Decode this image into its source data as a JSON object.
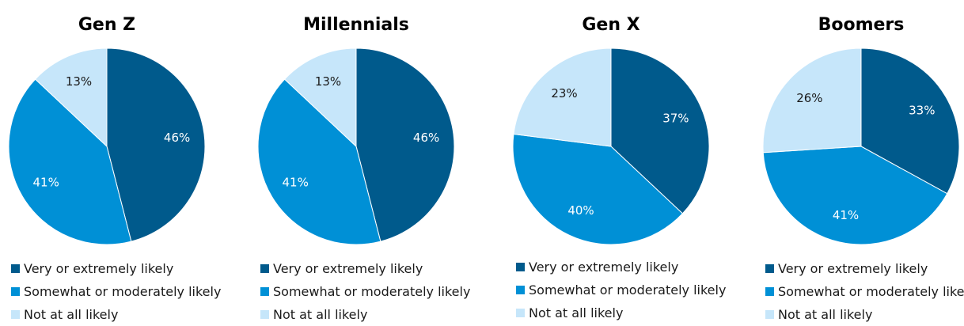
{
  "chart_data": [
    {
      "type": "pie",
      "title": "Gen Z",
      "categories": [
        "Very or extremely likely",
        "Somewhat or moderately likely",
        "Not at all likely"
      ],
      "values": [
        46,
        41,
        13
      ],
      "labels": [
        "46%",
        "41%",
        "13%"
      ],
      "legend_position": "bottom"
    },
    {
      "type": "pie",
      "title": "Millennials",
      "categories": [
        "Very or extremely likely",
        "Somewhat or moderately likely",
        "Not at all likely"
      ],
      "values": [
        46,
        41,
        13
      ],
      "labels": [
        "46%",
        "41%",
        "13%"
      ],
      "legend_position": "bottom"
    },
    {
      "type": "pie",
      "title": "Gen X",
      "categories": [
        "Very or extremely likely",
        "Somewhat or moderately likely",
        "Not at all likely"
      ],
      "values": [
        37,
        40,
        23
      ],
      "labels": [
        "37%",
        "40%",
        "23%"
      ],
      "legend_position": "bottom"
    },
    {
      "type": "pie",
      "title": "Boomers",
      "categories": [
        "Very or extremely likely",
        "Somewhat or moderately likely",
        "Not at all likely"
      ],
      "values": [
        33,
        41,
        26
      ],
      "labels": [
        "33%",
        "41%",
        "26%"
      ],
      "legend_position": "bottom"
    }
  ],
  "colors": {
    "very": "#005a8c",
    "somewhat": "#0090d6",
    "not": "#c6e6fa",
    "label_dark_bg": "#ffffff",
    "label_light_bg": "#1a1a1a"
  }
}
